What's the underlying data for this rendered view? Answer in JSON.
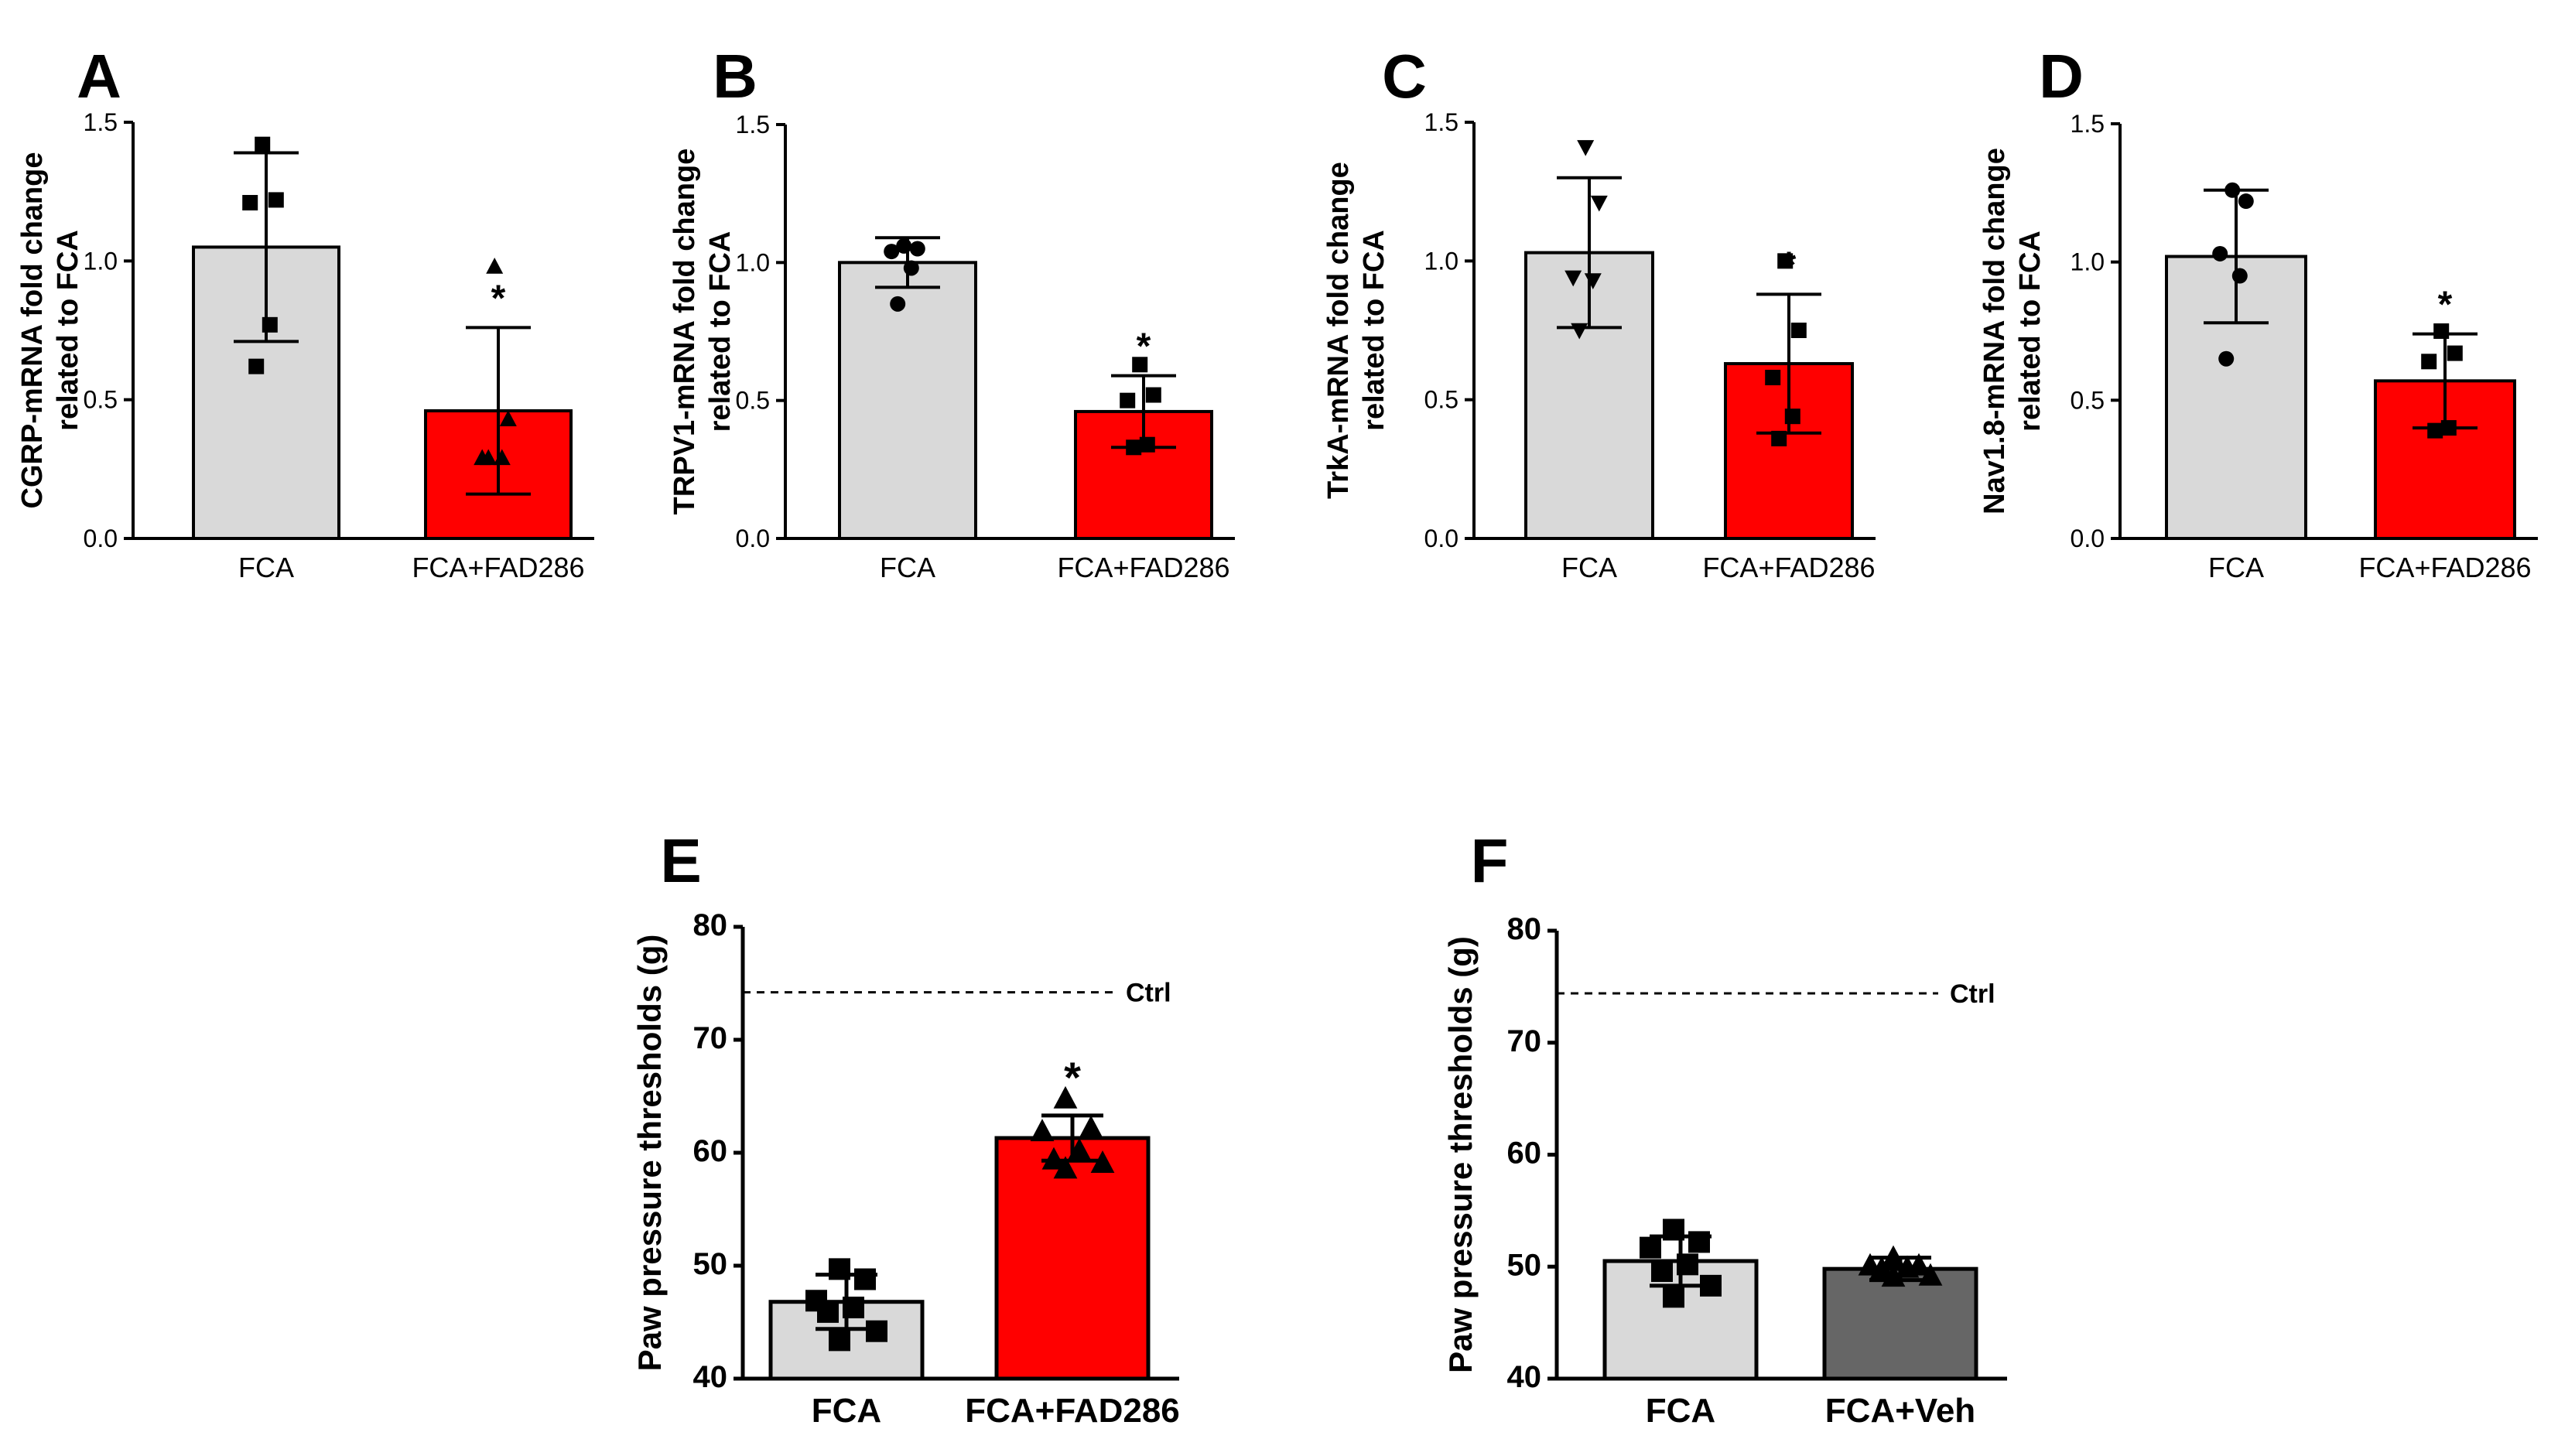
{
  "colors": {
    "gray": "#d9d9d9",
    "red": "#ff0000",
    "dark_gray": "#666666",
    "black": "#000000"
  },
  "chart_data": [
    {
      "panel": "A",
      "type": "bar",
      "ylabel": [
        "CGRP-mRNA fold change",
        "related to FCA"
      ],
      "ylim": [
        0,
        1.5
      ],
      "yticks": [
        "0.0",
        "0.5",
        "1.0",
        "1.5"
      ],
      "categories": [
        "FCA",
        "FCA+FAD286"
      ],
      "values": [
        1.05,
        0.46
      ],
      "sd": [
        0.34,
        0.3
      ],
      "significance": [
        "",
        "*"
      ],
      "colors": [
        "gray",
        "red"
      ],
      "markers": [
        "square",
        "triangle"
      ],
      "points": [
        [
          1.42,
          1.22,
          1.21,
          0.77,
          0.62
        ],
        [
          0.98,
          0.43,
          0.29,
          0.29,
          0.29
        ]
      ]
    },
    {
      "panel": "B",
      "type": "bar",
      "ylabel": [
        "TRPV1-mRNA fold change",
        "related to FCA"
      ],
      "ylim": [
        0,
        1.5
      ],
      "yticks": [
        "0.0",
        "0.5",
        "1.0",
        "1.5"
      ],
      "categories": [
        "FCA",
        "FCA+FAD286"
      ],
      "values": [
        1.0,
        0.46
      ],
      "sd": [
        0.09,
        0.13
      ],
      "significance": [
        "",
        "*"
      ],
      "colors": [
        "gray",
        "red"
      ],
      "markers": [
        "circle",
        "square"
      ],
      "points": [
        [
          1.06,
          1.05,
          1.04,
          0.98,
          0.85
        ],
        [
          0.63,
          0.52,
          0.5,
          0.34,
          0.33
        ]
      ]
    },
    {
      "panel": "C",
      "type": "bar",
      "ylabel": [
        "TrkA-mRNA fold change",
        "related to FCA"
      ],
      "ylim": [
        0,
        1.5
      ],
      "yticks": [
        "0.0",
        "0.5",
        "1.0",
        "1.5"
      ],
      "categories": [
        "FCA",
        "FCA+FAD286"
      ],
      "values": [
        1.03,
        0.63
      ],
      "sd": [
        0.27,
        0.25
      ],
      "significance": [
        "",
        "*"
      ],
      "colors": [
        "gray",
        "red"
      ],
      "markers": [
        "down-triangle",
        "square"
      ],
      "points": [
        [
          1.41,
          1.21,
          0.94,
          0.93,
          0.75
        ],
        [
          1.0,
          0.75,
          0.58,
          0.44,
          0.36
        ]
      ]
    },
    {
      "panel": "D",
      "type": "bar",
      "ylabel": [
        "Nav1.8-mRNA fold change",
        "related to FCA"
      ],
      "ylim": [
        0,
        1.5
      ],
      "yticks": [
        "0.0",
        "0.5",
        "1.0",
        "1.5"
      ],
      "categories": [
        "FCA",
        "FCA+FAD286"
      ],
      "values": [
        1.02,
        0.57
      ],
      "sd": [
        0.24,
        0.17
      ],
      "significance": [
        "",
        "*"
      ],
      "colors": [
        "gray",
        "red"
      ],
      "markers": [
        "circle",
        "square"
      ],
      "points": [
        [
          1.26,
          1.22,
          1.03,
          0.95,
          0.65
        ],
        [
          0.75,
          0.67,
          0.64,
          0.4,
          0.39
        ]
      ]
    },
    {
      "panel": "E",
      "type": "bar",
      "ylabel": [
        "Paw pressure thresholds (g)"
      ],
      "ylim": [
        40,
        80
      ],
      "yticks": [
        "40",
        "50",
        "60",
        "70",
        "80"
      ],
      "reference_line": {
        "value": 74.2,
        "label": "Ctrl"
      },
      "categories": [
        "FCA",
        "FCA+FAD286"
      ],
      "values": [
        46.8,
        61.3
      ],
      "sd": [
        2.4,
        2.0
      ],
      "significance": [
        "",
        "*"
      ],
      "colors": [
        "gray",
        "red"
      ],
      "markers": [
        "square",
        "triangle"
      ],
      "points": [
        [
          49.7,
          48.8,
          46.9,
          46.3,
          45.9,
          44.2,
          43.4
        ],
        [
          64.8,
          62.2,
          61.9,
          60.2,
          59.4,
          59.1,
          58.6
        ]
      ]
    },
    {
      "panel": "F",
      "type": "bar",
      "ylabel": [
        "Paw pressure thresholds (g)"
      ],
      "ylim": [
        40,
        80
      ],
      "yticks": [
        "40",
        "50",
        "60",
        "70",
        "80"
      ],
      "reference_line": {
        "value": 74.4,
        "label": "Ctrl"
      },
      "categories": [
        "FCA",
        "FCA+Veh"
      ],
      "values": [
        50.5,
        49.8
      ],
      "sd": [
        2.2,
        1.0
      ],
      "significance": [
        "",
        ""
      ],
      "colors": [
        "gray",
        "dark_gray"
      ],
      "markers": [
        "square",
        "triangle"
      ],
      "points": [
        [
          53.3,
          52.2,
          51.7,
          50.2,
          49.6,
          48.3,
          47.3
        ],
        [
          50.8,
          50.1,
          50.1,
          49.9,
          49.8,
          49.2,
          49.1
        ]
      ]
    }
  ]
}
